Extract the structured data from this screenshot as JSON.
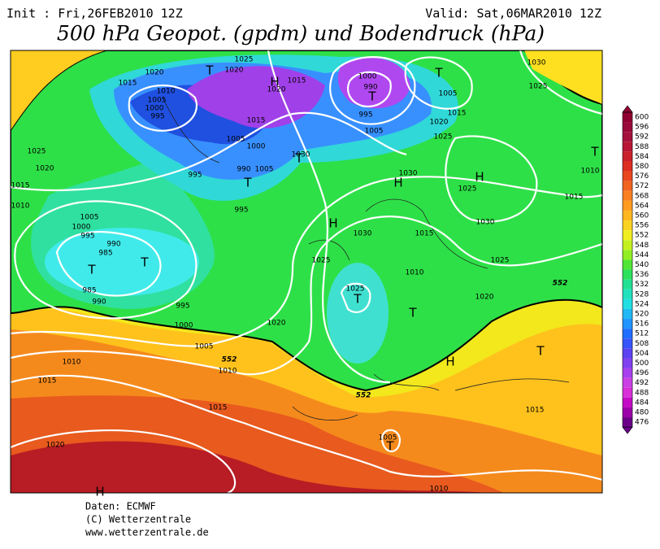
{
  "header": {
    "init": "Init : Fri,26FEB2010 12Z",
    "valid": "Valid: Sat,06MAR2010 12Z",
    "title": "500 hPa Geopot. (gpdm) und Bodendruck (hPa)"
  },
  "pressure_labels": [
    "1025",
    "1020",
    "1020",
    "1015",
    "1010",
    "1005",
    "1000",
    "995",
    "1015",
    "1020",
    "1000",
    "990",
    "995",
    "1005",
    "1015",
    "1005",
    "1000",
    "990",
    "1005",
    "995",
    "995",
    "1030",
    "1025",
    "1020",
    "1015",
    "1010",
    "1005",
    "1000",
    "995",
    "990",
    "985",
    "985",
    "990",
    "995",
    "1000",
    "1005",
    "1010",
    "1015",
    "1010",
    "1015",
    "1020",
    "1020",
    "1030",
    "1025",
    "1005",
    "1015",
    "1020",
    "1025",
    "1010",
    "1015",
    "1030",
    "1025",
    "1030",
    "1030",
    "1015",
    "1025",
    "1010",
    "1025",
    "1020",
    "1025",
    "1005",
    "1015",
    "1010"
  ],
  "contour_labels": [
    "552",
    "552",
    "552"
  ],
  "centers": [
    "T",
    "H",
    "T",
    "T",
    "T",
    "T",
    "H",
    "H",
    "T",
    "H",
    "T",
    "T",
    "T",
    "T",
    "H",
    "T",
    "T",
    "H"
  ],
  "colorbar": {
    "ticks": [
      600,
      596,
      592,
      588,
      584,
      580,
      576,
      572,
      568,
      564,
      560,
      556,
      552,
      548,
      544,
      540,
      536,
      532,
      528,
      524,
      520,
      516,
      512,
      508,
      504,
      500,
      496,
      492,
      488,
      484,
      480,
      476
    ]
  },
  "footer": {
    "source": "Daten: ECMWF",
    "copyright": "(C) Wetterzentrale",
    "url": "www.wetterzentrale.de"
  }
}
